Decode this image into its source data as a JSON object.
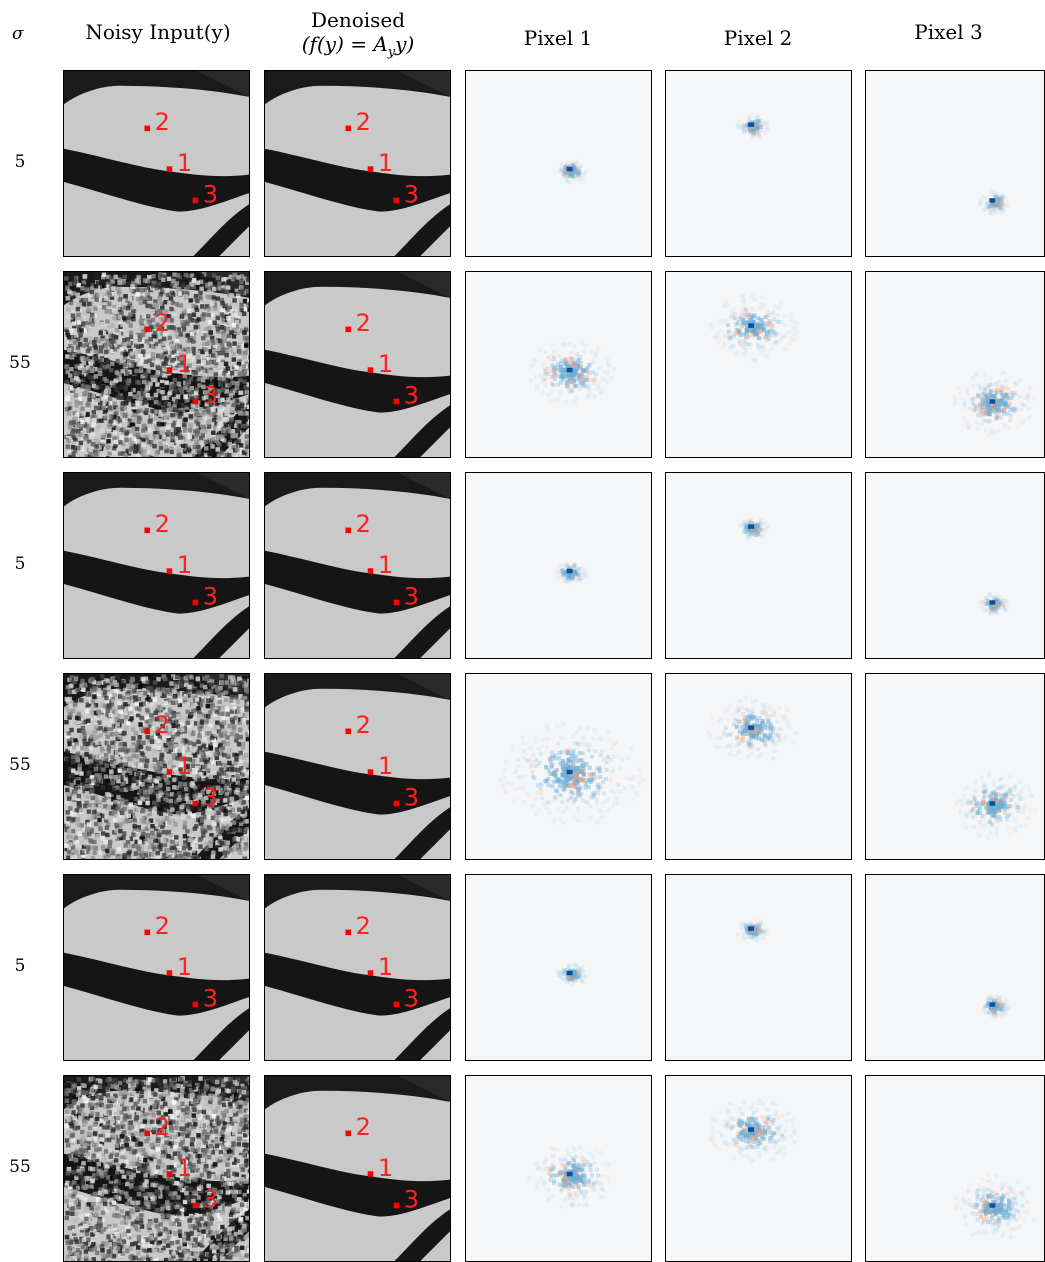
{
  "header": {
    "sigma": "σ",
    "noisy_input": "Noisy Input(y)",
    "denoised_line1": "Denoised",
    "denoised_line2": "(f(y) = Ayy)",
    "pixel1": "Pixel 1",
    "pixel2": "Pixel 2",
    "pixel3": "Pixel 3"
  },
  "rows": [
    {
      "sigma": "5"
    },
    {
      "sigma": "55"
    },
    {
      "sigma": "5"
    },
    {
      "sigma": "55"
    },
    {
      "sigma": "5"
    },
    {
      "sigma": "55"
    }
  ],
  "markers": [
    "1",
    "2",
    "3"
  ],
  "colors": {
    "marker": "#ff0000",
    "weight_positive": "#08519c",
    "weight_negative": "#f4a582",
    "panel_background": "#f5f6f8"
  }
}
